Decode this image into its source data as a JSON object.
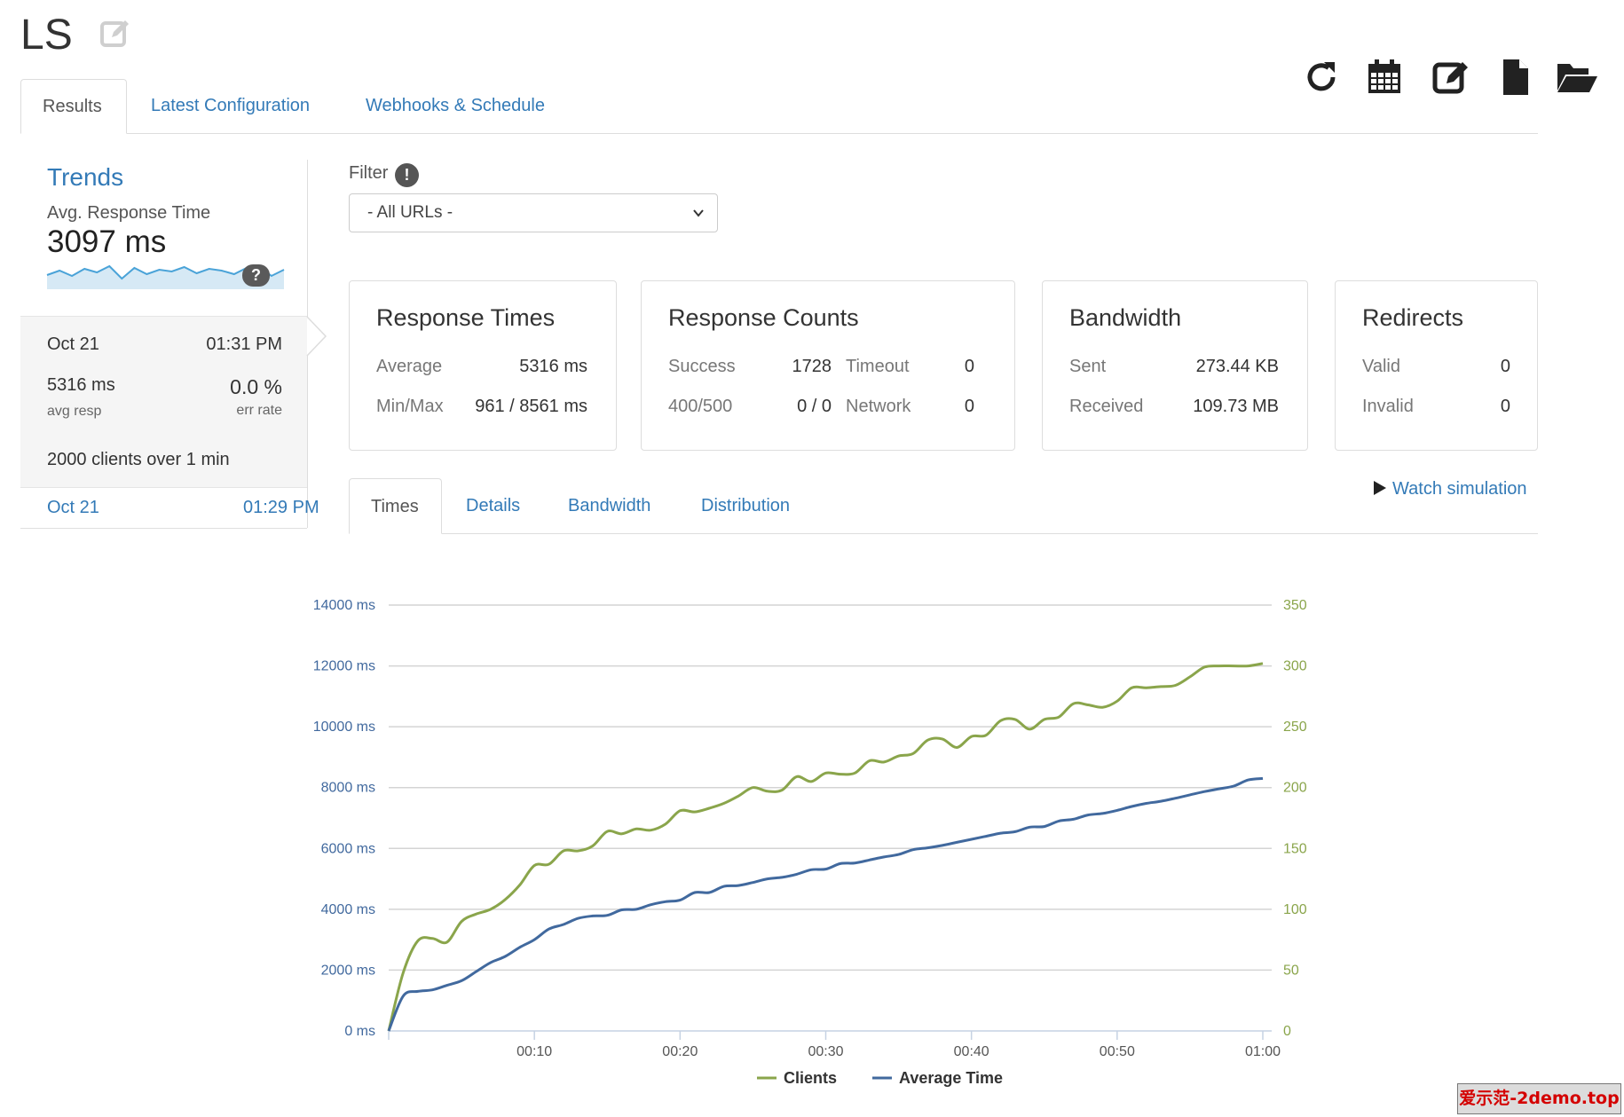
{
  "page": {
    "title": "LS"
  },
  "toolbar": {
    "icons": [
      "refresh-icon",
      "calendar-icon",
      "edit-icon",
      "file-icon",
      "folder-open-icon"
    ]
  },
  "main_tabs": [
    {
      "label": "Results",
      "active": true
    },
    {
      "label": "Latest Configuration",
      "active": false
    },
    {
      "label": "Webhooks & Schedule",
      "active": false
    }
  ],
  "trends": {
    "title": "Trends",
    "subtitle": "Avg. Response Time",
    "value": "3097 ms",
    "help": "?",
    "sparkline": [
      3050,
      3100,
      3040,
      3120,
      3080,
      3150,
      3010,
      3130,
      3060,
      3110,
      3090,
      3140,
      3070,
      3120,
      3100,
      3060,
      3130,
      3150,
      3040,
      3110
    ]
  },
  "runs": [
    {
      "date": "Oct 21",
      "time": "01:31 PM",
      "avg_resp_value": "5316 ms",
      "avg_resp_label": "avg resp",
      "err_value": "0.0 %",
      "err_label": "err rate",
      "clients_count": "2000",
      "clients_suffix": "clients over 1 min"
    },
    {
      "date": "Oct 21",
      "time": "01:29 PM"
    }
  ],
  "filter": {
    "label": "Filter",
    "info": "!",
    "selected": "- All URLs -"
  },
  "panels": {
    "response_times": {
      "title": "Response Times",
      "average_label": "Average",
      "average_value": "5316 ms",
      "minmax_label": "Min/Max",
      "minmax_value": "961 / 8561 ms"
    },
    "response_counts": {
      "title": "Response Counts",
      "success_label": "Success",
      "success_value": "1728",
      "timeout_label": "Timeout",
      "timeout_value": "0",
      "err_label": "400/500",
      "err_value": "0 / 0",
      "network_label": "Network",
      "network_value": "0"
    },
    "bandwidth": {
      "title": "Bandwidth",
      "sent_label": "Sent",
      "sent_value": "273.44 KB",
      "received_label": "Received",
      "received_value": "109.73 MB"
    },
    "redirects": {
      "title": "Redirects",
      "valid_label": "Valid",
      "valid_value": "0",
      "invalid_label": "Invalid",
      "invalid_value": "0"
    }
  },
  "sub_tabs": [
    {
      "label": "Times",
      "active": true
    },
    {
      "label": "Details",
      "active": false
    },
    {
      "label": "Bandwidth",
      "active": false
    },
    {
      "label": "Distribution",
      "active": false
    }
  ],
  "watch": {
    "label": "Watch simulation"
  },
  "colors": {
    "link": "#337ab7",
    "clients": "#8aa54b",
    "average_time": "#41699e",
    "sparkline": "#4aa3d8"
  },
  "chart_data": {
    "type": "line",
    "x_tick_labels": [
      "00:10",
      "00:20",
      "00:30",
      "00:40",
      "00:50",
      "01:00"
    ],
    "y_left_ticks": [
      "0 ms",
      "2000 ms",
      "4000 ms",
      "6000 ms",
      "8000 ms",
      "10000 ms",
      "12000 ms",
      "14000 ms"
    ],
    "y_right_ticks": [
      "0",
      "50",
      "100",
      "150",
      "200",
      "250",
      "300",
      "350"
    ],
    "y_left_range": [
      0,
      14000
    ],
    "y_right_range": [
      0,
      350
    ],
    "x_range_seconds": [
      0,
      60
    ],
    "grid": true,
    "legend_position": "bottom-center",
    "series": [
      {
        "name": "Clients",
        "axis": "right",
        "x": [
          0,
          1,
          2,
          3,
          4,
          5,
          6,
          7,
          8,
          9,
          10,
          11,
          12,
          13,
          14,
          15,
          16,
          17,
          18,
          19,
          20,
          21,
          22,
          23,
          24,
          25,
          26,
          27,
          28,
          29,
          30,
          31,
          32,
          33,
          34,
          35,
          36,
          37,
          38,
          39,
          40,
          41,
          42,
          43,
          44,
          45,
          46,
          47,
          48,
          49,
          50,
          51,
          52,
          53,
          54,
          55,
          56,
          57,
          58,
          59,
          60
        ],
        "values": [
          0,
          48,
          74,
          76,
          73,
          90,
          96,
          100,
          108,
          120,
          136,
          137,
          148,
          148,
          152,
          164,
          162,
          166,
          165,
          170,
          181,
          180,
          183,
          187,
          193,
          200,
          197,
          198,
          209,
          205,
          212,
          211,
          212,
          222,
          221,
          226,
          228,
          239,
          240,
          233,
          242,
          243,
          255,
          256,
          248,
          256,
          258,
          269,
          268,
          266,
          271,
          282,
          282,
          283,
          284,
          291,
          299,
          300,
          300,
          300,
          302
        ]
      },
      {
        "name": "Average Time",
        "axis": "left",
        "x": [
          0,
          1,
          2,
          3,
          4,
          5,
          6,
          7,
          8,
          9,
          10,
          11,
          12,
          13,
          14,
          15,
          16,
          17,
          18,
          19,
          20,
          21,
          22,
          23,
          24,
          25,
          26,
          27,
          28,
          29,
          30,
          31,
          32,
          33,
          34,
          35,
          36,
          37,
          38,
          39,
          40,
          41,
          42,
          43,
          44,
          45,
          46,
          47,
          48,
          49,
          50,
          51,
          52,
          53,
          54,
          55,
          56,
          57,
          58,
          59,
          60
        ],
        "values": [
          0,
          1150,
          1300,
          1350,
          1500,
          1650,
          1950,
          2250,
          2450,
          2750,
          3000,
          3350,
          3500,
          3700,
          3780,
          3800,
          3980,
          4000,
          4150,
          4250,
          4300,
          4550,
          4550,
          4750,
          4780,
          4880,
          5000,
          5050,
          5150,
          5300,
          5320,
          5500,
          5520,
          5620,
          5720,
          5800,
          5960,
          6020,
          6100,
          6200,
          6300,
          6400,
          6500,
          6550,
          6700,
          6720,
          6900,
          6960,
          7100,
          7150,
          7250,
          7380,
          7480,
          7550,
          7650,
          7760,
          7870,
          7960,
          8050,
          8250,
          8300
        ]
      }
    ]
  }
}
